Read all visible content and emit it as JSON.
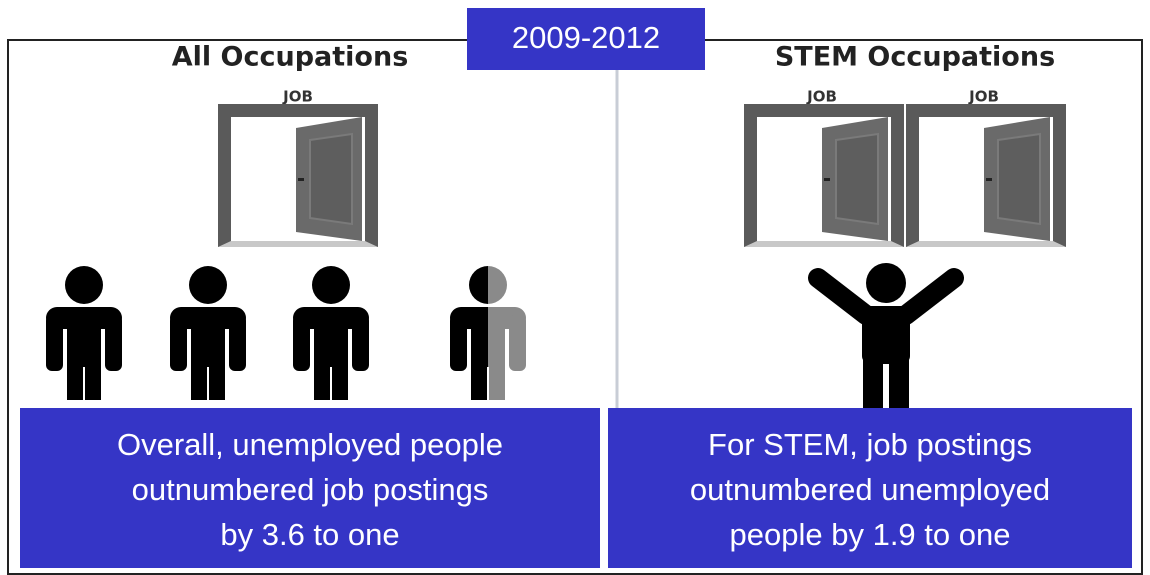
{
  "title": "2009-2012",
  "panels": [
    {
      "heading": "All Occupations",
      "doors": [
        "JOB"
      ],
      "caption": [
        "Overall, unemployed people",
        "outnumbered job postings",
        "by 3.6 to one"
      ]
    },
    {
      "heading": "STEM Occupations",
      "doors": [
        "JOB",
        "JOB"
      ],
      "caption": [
        "For STEM, job postings",
        "outnumbered unemployed",
        "people by 1.9 to one"
      ]
    }
  ]
}
